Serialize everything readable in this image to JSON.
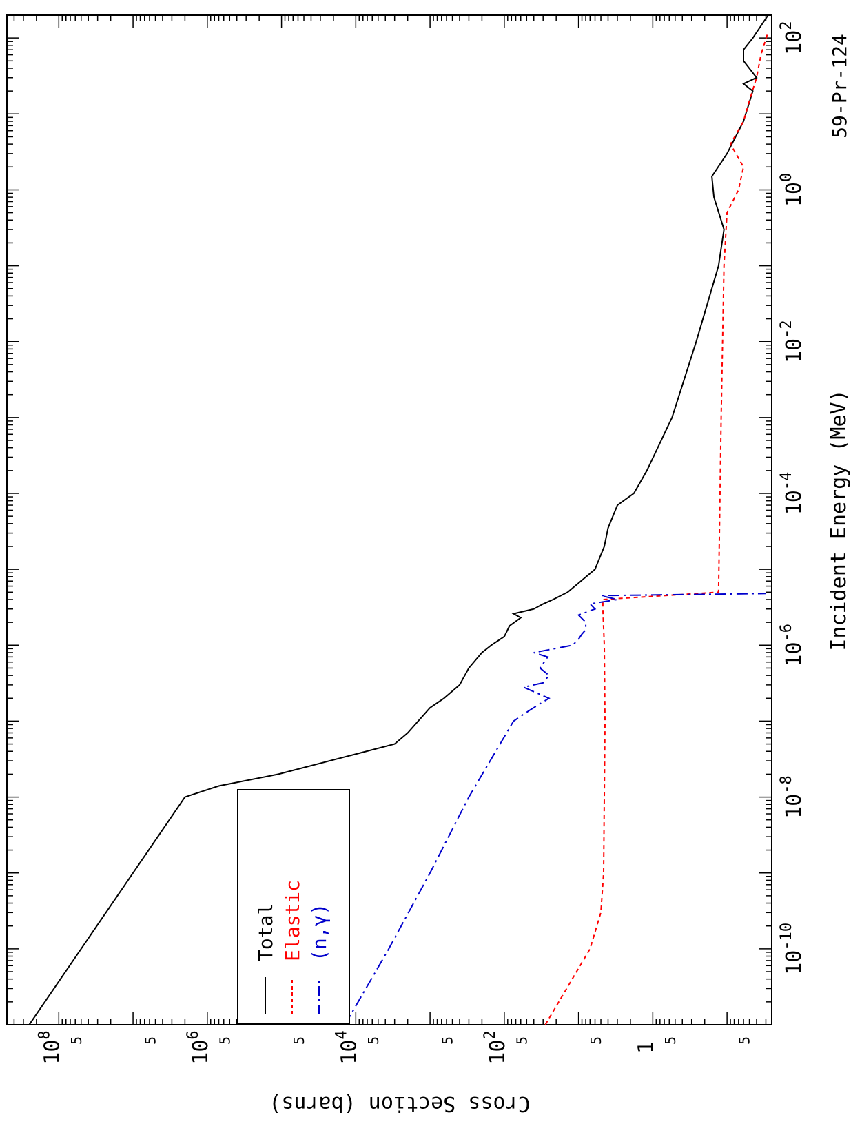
{
  "chart_data": {
    "type": "line",
    "orientation": "rotated-90-clockwise",
    "title": "59-Pr-124",
    "xlabel": "Incident Energy (MeV)",
    "ylabel": "Cross Section (barns)",
    "x_scale": "log",
    "y_scale": "log",
    "xlim": [
      1e-11,
      200
    ],
    "ylim": [
      0.025,
      500000000
    ],
    "x_tick_labels": [
      "10-10",
      "10-8",
      "10-6",
      "10-4",
      "10-2",
      "100",
      "102"
    ],
    "y_tick_labels": [
      "1",
      "102",
      "104",
      "106",
      "108"
    ],
    "y_minor_label": "5",
    "grid": false,
    "legend_position": "inside-top-left",
    "colors": {
      "total": "#000000",
      "elastic": "#ff0000",
      "ngamma": "#0000cc"
    },
    "series": [
      {
        "name": "Total",
        "style": "solid",
        "color": "#000000",
        "points": [
          [
            1e-11,
            250000000
          ],
          [
            1e-08,
            2000000
          ],
          [
            1.4e-08,
            700000
          ],
          [
            2e-08,
            110000
          ],
          [
            5e-08,
            3000
          ],
          [
            7e-08,
            2000
          ],
          [
            1.5e-07,
            1000
          ],
          [
            2e-07,
            650
          ],
          [
            3e-07,
            400
          ],
          [
            5e-07,
            300
          ],
          [
            8e-07,
            200
          ],
          [
            1e-06,
            150
          ],
          [
            1.3e-06,
            100
          ],
          [
            1.8e-06,
            85
          ],
          [
            2.3e-06,
            60
          ],
          [
            2.6e-06,
            75
          ],
          [
            3e-06,
            40
          ],
          [
            3.5e-06,
            30
          ],
          [
            4e-06,
            22
          ],
          [
            5e-06,
            14
          ],
          [
            1e-05,
            6
          ],
          [
            2e-05,
            4.5
          ],
          [
            3.5e-05,
            4
          ],
          [
            7e-05,
            3
          ],
          [
            0.0001,
            1.8
          ],
          [
            0.0002,
            1.2
          ],
          [
            0.001,
            0.55
          ],
          [
            0.01,
            0.26
          ],
          [
            0.1,
            0.13
          ],
          [
            0.3,
            0.11
          ],
          [
            0.8,
            0.15
          ],
          [
            1.5,
            0.16
          ],
          [
            3,
            0.1
          ],
          [
            8,
            0.06
          ],
          [
            20,
            0.045
          ],
          [
            25,
            0.06
          ],
          [
            30,
            0.04
          ],
          [
            50,
            0.06
          ],
          [
            70,
            0.06
          ],
          [
            100,
            0.045
          ],
          [
            200,
            0.028
          ]
        ]
      },
      {
        "name": "Elastic",
        "style": "dashed",
        "color": "#ff0000",
        "points": [
          [
            1e-11,
            28
          ],
          [
            1e-10,
            7
          ],
          [
            3e-10,
            5
          ],
          [
            1e-09,
            4.6
          ],
          [
            1e-08,
            4.5
          ],
          [
            1e-07,
            4.4
          ],
          [
            1e-06,
            4.5
          ],
          [
            3e-06,
            4.7
          ],
          [
            4e-06,
            4.7
          ],
          [
            5e-06,
            0.13
          ],
          [
            0.001,
            0.12
          ],
          [
            0.1,
            0.11
          ],
          [
            0.5,
            0.1
          ],
          [
            1,
            0.07
          ],
          [
            2,
            0.06
          ],
          [
            4,
            0.09
          ],
          [
            8,
            0.06
          ],
          [
            15,
            0.05
          ],
          [
            30,
            0.04
          ],
          [
            60,
            0.035
          ],
          [
            120,
            0.028
          ]
        ]
      },
      {
        "name": "(n,γ)",
        "style": "dash-dot",
        "color": "#0000cc",
        "points": [
          [
            1e-11,
            14000
          ],
          [
            1e-10,
            3600
          ],
          [
            1e-09,
            1000
          ],
          [
            1e-08,
            300
          ],
          [
            1e-07,
            75
          ],
          [
            1.4e-07,
            45
          ],
          [
            2e-07,
            25
          ],
          [
            2.8e-07,
            55
          ],
          [
            3.2e-07,
            30
          ],
          [
            4e-07,
            25
          ],
          [
            5e-07,
            33
          ],
          [
            7e-07,
            26
          ],
          [
            8e-07,
            40
          ],
          [
            1e-06,
            12
          ],
          [
            1.2e-06,
            10
          ],
          [
            1.4e-06,
            9
          ],
          [
            1.6e-06,
            8
          ],
          [
            2e-06,
            8
          ],
          [
            2.5e-06,
            10
          ],
          [
            3e-06,
            6
          ],
          [
            3.5e-06,
            7
          ],
          [
            4e-06,
            3
          ],
          [
            4.5e-06,
            5
          ],
          [
            4.8e-06,
            0.03
          ]
        ]
      }
    ]
  }
}
